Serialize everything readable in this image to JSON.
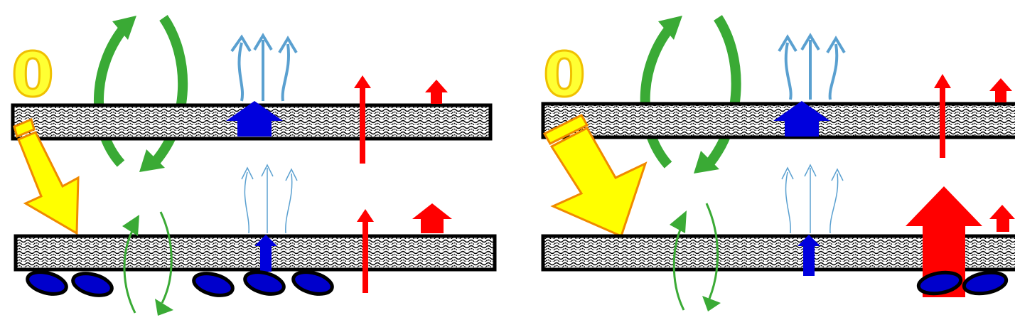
{
  "panels": [
    {
      "id": "left",
      "label": "0"
    },
    {
      "id": "right",
      "label": "0"
    }
  ],
  "colors": {
    "slab_fill": "#ffffff",
    "slab_stroke": "#000000",
    "slab_texture": "#000000",
    "green_arrow": "#3aaa35",
    "light_blue_arrow": "#5aa0d0",
    "blue_arrow": "#0000dd",
    "red_arrow": "#ff0000",
    "yellow_arrow": "#ffff00",
    "yellow_outline": "#f08a00",
    "cloud_fill": "#0000cc",
    "label_fill": "#ffff33",
    "label_stroke": "#f0c000"
  }
}
